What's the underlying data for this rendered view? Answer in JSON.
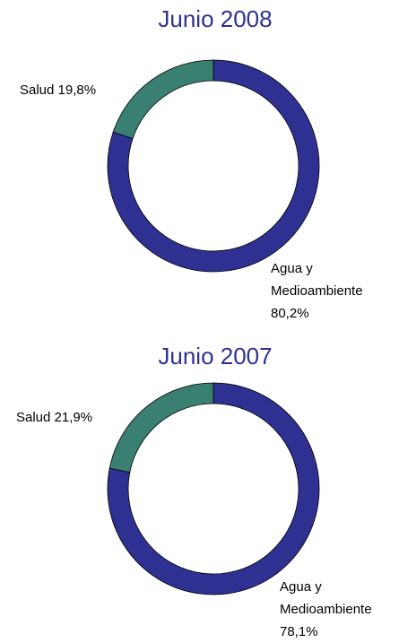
{
  "chart_data": [
    {
      "type": "donut",
      "title": "Junio 2008",
      "categories": [
        "Agua y Medioambiente",
        "Salud"
      ],
      "values": [
        80.2,
        19.8
      ],
      "value_labels": [
        "80,2%",
        "19,8%"
      ],
      "colors": [
        "#2e3192",
        "#3a8072"
      ]
    },
    {
      "type": "donut",
      "title": "Junio 2007",
      "categories": [
        "Agua y Medioambiente",
        "Salud"
      ],
      "values": [
        78.1,
        21.9
      ],
      "value_labels": [
        "78,1%",
        "21,9%"
      ],
      "colors": [
        "#2e3192",
        "#3a8072"
      ]
    }
  ]
}
